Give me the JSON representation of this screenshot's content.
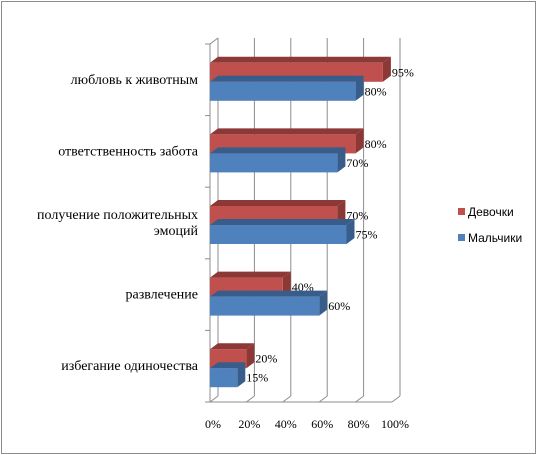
{
  "chart_data": {
    "type": "bar",
    "orientation": "horizontal",
    "style": "3d-clustered",
    "categories": [
      "любловь к животным",
      "ответственность забота",
      "получение положительных эмоций",
      "развлечение",
      "избегание одиночества"
    ],
    "category_lines": [
      [
        "любловь к животным"
      ],
      [
        "ответственность забота"
      ],
      [
        "получение положительных",
        "эмоций"
      ],
      [
        "развлечение"
      ],
      [
        "избегание одиночества"
      ]
    ],
    "series": [
      {
        "name": "Девочки",
        "values": [
          95,
          80,
          70,
          40,
          20
        ],
        "color": "#c0504d",
        "color_dark": "#8c3836"
      },
      {
        "name": "Мальчики",
        "values": [
          80,
          70,
          75,
          60,
          15
        ],
        "color": "#4f81bd",
        "color_dark": "#385d8a"
      }
    ],
    "data_labels": [
      [
        "95%",
        "80%",
        "70%",
        "40%",
        "20%"
      ],
      [
        "80%",
        "70%",
        "75%",
        "60%",
        "15%"
      ]
    ],
    "x_ticks": [
      "0%",
      "20%",
      "40%",
      "60%",
      "80%",
      "100%"
    ],
    "xlim": [
      0,
      100
    ],
    "x_unit": "%",
    "legend_position": "right",
    "grid": true
  }
}
